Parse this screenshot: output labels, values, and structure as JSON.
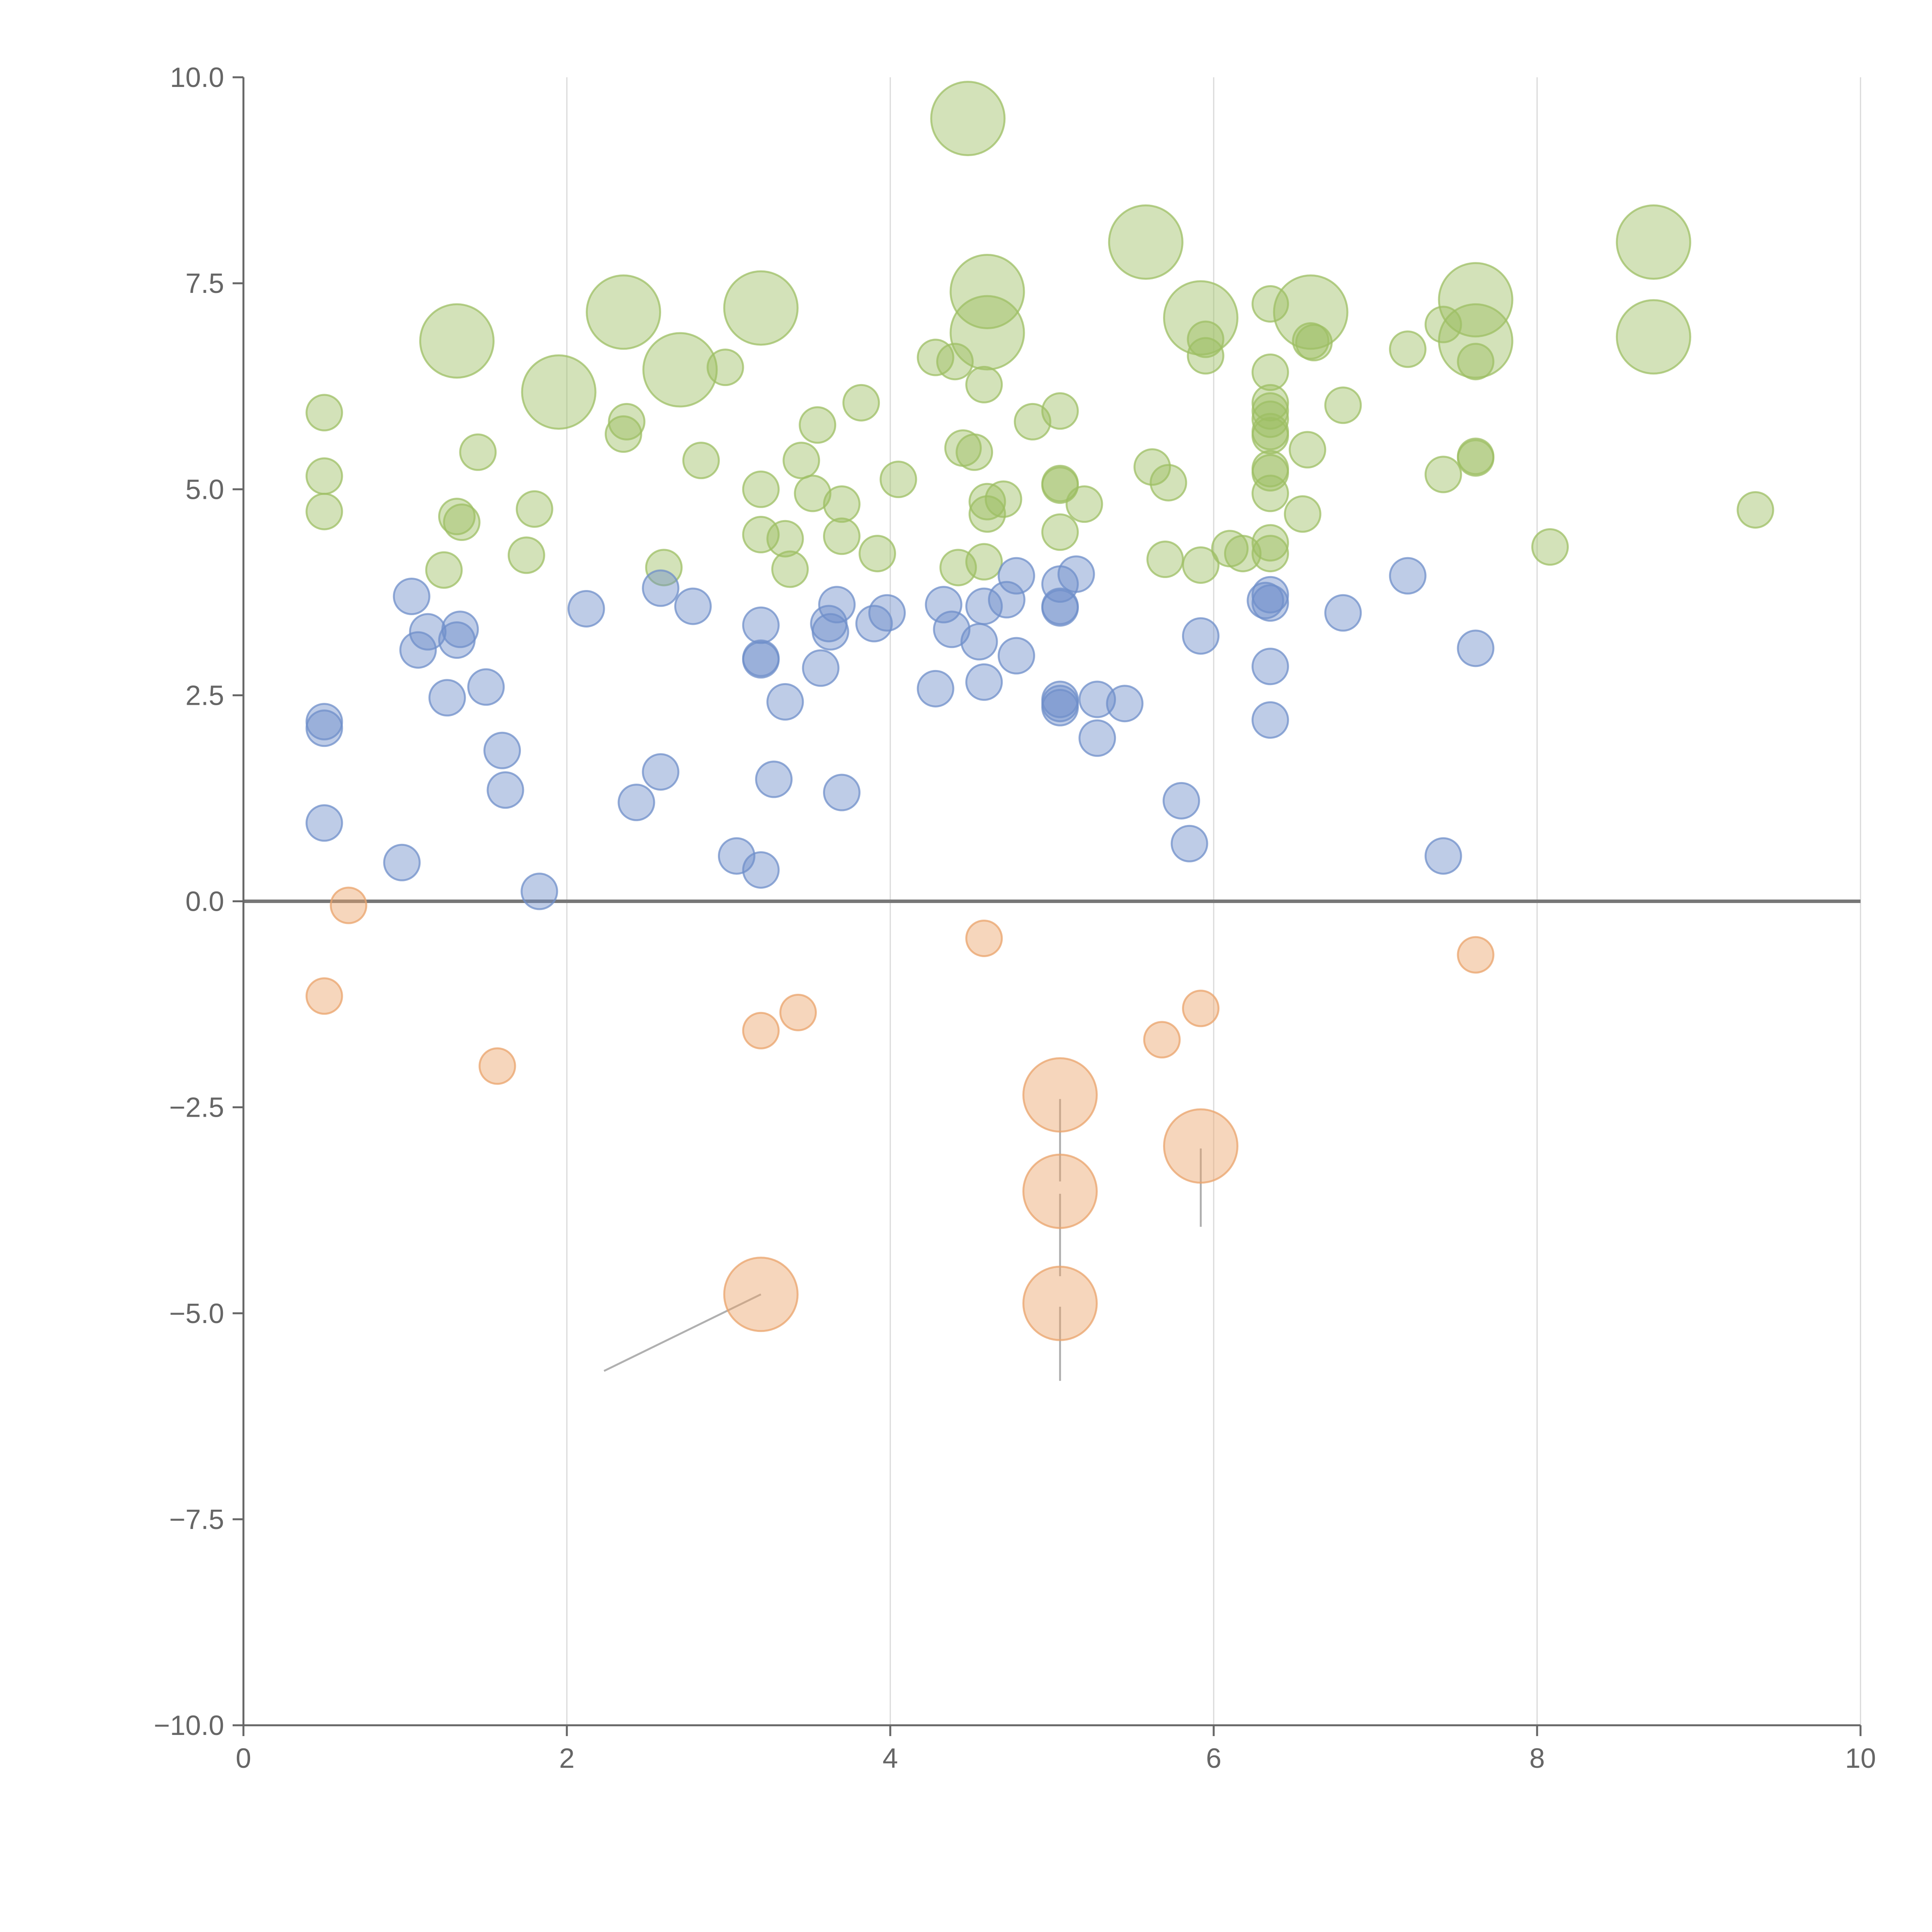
{
  "chart_data": {
    "type": "scatter",
    "title": "",
    "xlabel": "",
    "ylabel": "",
    "xlim": [
      0,
      10
    ],
    "ylim": [
      -10,
      10
    ],
    "xticks": [
      0,
      2,
      4,
      6,
      8,
      10
    ],
    "yticks": [
      -10,
      -7.5,
      -5,
      -2.5,
      0,
      2.5,
      5,
      7.5,
      10
    ],
    "xtick_labels": [
      "0",
      "2",
      "4",
      "6",
      "8",
      "10"
    ],
    "ytick_labels": [
      "−10.0",
      "−7.5",
      "−5.0",
      "−2.5",
      "0.0",
      "2.5",
      "5.0",
      "7.5",
      "10.0"
    ],
    "grid": "vertical",
    "reference_line_y": 0,
    "colors": {
      "green": "#9dbf64",
      "blue": "#6f8fca",
      "orange": "#eaa36b"
    },
    "series": [
      {
        "name": "green",
        "color": "#9dbf64",
        "points": [
          [
            4.48,
            9.5,
            "L"
          ],
          [
            5.58,
            8.0,
            "L"
          ],
          [
            8.72,
            8.0,
            "L"
          ],
          [
            2.35,
            7.15,
            "L"
          ],
          [
            3.2,
            7.2,
            "L"
          ],
          [
            4.6,
            7.4,
            "L"
          ],
          [
            6.6,
            7.15,
            "L"
          ],
          [
            7.62,
            7.3,
            "L"
          ],
          [
            1.32,
            6.8,
            "L"
          ],
          [
            4.6,
            6.9,
            "L"
          ],
          [
            5.92,
            7.08,
            "L"
          ],
          [
            7.62,
            6.8,
            "L"
          ],
          [
            8.72,
            6.85,
            "L"
          ],
          [
            1.95,
            6.18,
            "L"
          ],
          [
            2.7,
            6.45,
            "L"
          ],
          [
            0.5,
            5.93,
            "S"
          ],
          [
            0.5,
            5.16,
            "S"
          ],
          [
            0.5,
            4.73,
            "S"
          ],
          [
            1.24,
            4.02,
            "S"
          ],
          [
            1.32,
            4.67,
            "S"
          ],
          [
            1.35,
            4.6,
            "S"
          ],
          [
            1.45,
            5.45,
            "S"
          ],
          [
            1.75,
            4.2,
            "S"
          ],
          [
            1.8,
            4.76,
            "S"
          ],
          [
            2.35,
            5.67,
            "S"
          ],
          [
            2.37,
            5.82,
            "S"
          ],
          [
            2.6,
            4.05,
            "S"
          ],
          [
            2.83,
            5.35,
            "S"
          ],
          [
            2.98,
            6.48,
            "S"
          ],
          [
            3.2,
            5.0,
            "S"
          ],
          [
            3.2,
            4.45,
            "S"
          ],
          [
            3.35,
            4.4,
            "S"
          ],
          [
            3.38,
            4.03,
            "S"
          ],
          [
            3.45,
            5.35,
            "S"
          ],
          [
            3.52,
            4.95,
            "S"
          ],
          [
            3.55,
            5.78,
            "S"
          ],
          [
            3.7,
            4.43,
            "S"
          ],
          [
            3.7,
            4.82,
            "S"
          ],
          [
            3.82,
            6.05,
            "S"
          ],
          [
            3.92,
            4.22,
            "S"
          ],
          [
            4.05,
            5.12,
            "S"
          ],
          [
            4.28,
            6.6,
            "S"
          ],
          [
            4.4,
            6.55,
            "S"
          ],
          [
            4.42,
            4.05,
            "S"
          ],
          [
            4.45,
            5.5,
            "S"
          ],
          [
            4.52,
            5.45,
            "S"
          ],
          [
            4.58,
            6.27,
            "S"
          ],
          [
            4.58,
            4.12,
            "S"
          ],
          [
            4.6,
            4.7,
            "S"
          ],
          [
            4.6,
            4.85,
            "S"
          ],
          [
            4.7,
            4.88,
            "S"
          ],
          [
            4.88,
            5.82,
            "S"
          ],
          [
            5.05,
            5.95,
            "S"
          ],
          [
            5.05,
            5.07,
            "S"
          ],
          [
            5.05,
            5.05,
            "S"
          ],
          [
            5.05,
            4.48,
            "S"
          ],
          [
            5.2,
            4.82,
            "S"
          ],
          [
            5.62,
            5.27,
            "S"
          ],
          [
            5.7,
            4.15,
            "S"
          ],
          [
            5.72,
            5.08,
            "S"
          ],
          [
            5.92,
            4.08,
            "S"
          ],
          [
            5.95,
            6.82,
            "S"
          ],
          [
            5.95,
            6.62,
            "S"
          ],
          [
            6.1,
            4.28,
            "S"
          ],
          [
            6.18,
            4.22,
            "S"
          ],
          [
            6.35,
            7.25,
            "S"
          ],
          [
            6.35,
            6.42,
            "S"
          ],
          [
            6.35,
            6.05,
            "S"
          ],
          [
            6.35,
            5.95,
            "S"
          ],
          [
            6.35,
            5.85,
            "S"
          ],
          [
            6.35,
            5.65,
            "S"
          ],
          [
            6.35,
            5.25,
            "S"
          ],
          [
            6.35,
            4.95,
            "S"
          ],
          [
            6.35,
            4.35,
            "S"
          ],
          [
            6.35,
            4.22,
            "S"
          ],
          [
            6.35,
            5.7,
            "S"
          ],
          [
            6.35,
            5.2,
            "S"
          ],
          [
            6.58,
            5.48,
            "S"
          ],
          [
            6.55,
            4.7,
            "S"
          ],
          [
            6.6,
            6.8,
            "S"
          ],
          [
            6.62,
            6.78,
            "S"
          ],
          [
            6.8,
            6.02,
            "S"
          ],
          [
            7.2,
            6.7,
            "S"
          ],
          [
            7.42,
            7.0,
            "S"
          ],
          [
            7.42,
            5.18,
            "S"
          ],
          [
            7.62,
            6.55,
            "S"
          ],
          [
            7.62,
            5.4,
            "S"
          ],
          [
            7.62,
            5.38,
            "S"
          ],
          [
            8.08,
            4.3,
            "S"
          ],
          [
            9.35,
            4.75,
            "S"
          ]
        ]
      },
      {
        "name": "blue",
        "color": "#6f8fca",
        "points": [
          [
            0.5,
            2.18,
            "S"
          ],
          [
            0.5,
            2.1,
            "S"
          ],
          [
            0.5,
            0.95,
            "S"
          ],
          [
            0.98,
            0.47,
            "S"
          ],
          [
            1.04,
            3.7,
            "S"
          ],
          [
            1.08,
            3.05,
            "S"
          ],
          [
            1.14,
            3.27,
            "S"
          ],
          [
            1.26,
            2.47,
            "S"
          ],
          [
            1.32,
            3.17,
            "S"
          ],
          [
            1.34,
            3.3,
            "S"
          ],
          [
            1.5,
            2.6,
            "S"
          ],
          [
            1.6,
            1.83,
            "S"
          ],
          [
            1.62,
            1.35,
            "S"
          ],
          [
            1.83,
            0.12,
            "S"
          ],
          [
            2.12,
            3.55,
            "S"
          ],
          [
            2.43,
            1.2,
            "S"
          ],
          [
            2.58,
            3.8,
            "S"
          ],
          [
            2.58,
            1.57,
            "S"
          ],
          [
            2.78,
            3.58,
            "S"
          ],
          [
            3.05,
            0.55,
            "S"
          ],
          [
            3.2,
            3.35,
            "S"
          ],
          [
            3.2,
            2.95,
            "S"
          ],
          [
            3.2,
            2.93,
            "S"
          ],
          [
            3.2,
            0.38,
            "S"
          ],
          [
            3.28,
            1.48,
            "S"
          ],
          [
            3.35,
            2.42,
            "S"
          ],
          [
            3.57,
            2.83,
            "S"
          ],
          [
            3.62,
            3.37,
            "S"
          ],
          [
            3.63,
            3.27,
            "S"
          ],
          [
            3.67,
            3.6,
            "S"
          ],
          [
            3.7,
            1.32,
            "S"
          ],
          [
            3.9,
            3.37,
            "S"
          ],
          [
            3.98,
            3.5,
            "S"
          ],
          [
            4.28,
            2.58,
            "S"
          ],
          [
            4.33,
            3.6,
            "S"
          ],
          [
            4.38,
            3.3,
            "S"
          ],
          [
            4.55,
            3.15,
            "S"
          ],
          [
            4.58,
            3.58,
            "S"
          ],
          [
            4.58,
            2.66,
            "S"
          ],
          [
            4.72,
            3.66,
            "S"
          ],
          [
            4.78,
            3.95,
            "S"
          ],
          [
            4.78,
            2.98,
            "S"
          ],
          [
            5.05,
            3.85,
            "S"
          ],
          [
            5.05,
            3.58,
            "S"
          ],
          [
            5.05,
            3.56,
            "S"
          ],
          [
            5.05,
            2.45,
            "S"
          ],
          [
            5.05,
            2.35,
            "S"
          ],
          [
            5.05,
            2.4,
            "S"
          ],
          [
            5.15,
            3.97,
            "S"
          ],
          [
            5.28,
            2.45,
            "S"
          ],
          [
            5.28,
            1.98,
            "S"
          ],
          [
            5.45,
            2.4,
            "S"
          ],
          [
            5.8,
            1.22,
            "S"
          ],
          [
            5.85,
            0.7,
            "S"
          ],
          [
            5.92,
            3.22,
            "S"
          ],
          [
            6.32,
            3.65,
            "S"
          ],
          [
            6.35,
            3.72,
            "S"
          ],
          [
            6.35,
            3.62,
            "S"
          ],
          [
            6.35,
            2.85,
            "S"
          ],
          [
            6.35,
            2.2,
            "S"
          ],
          [
            6.8,
            3.5,
            "S"
          ],
          [
            7.2,
            3.95,
            "S"
          ],
          [
            7.42,
            0.55,
            "S"
          ],
          [
            7.62,
            3.07,
            "S"
          ]
        ]
      },
      {
        "name": "orange",
        "color": "#eaa36b",
        "points": [
          [
            0.65,
            -0.05,
            "S"
          ],
          [
            0.5,
            -1.15,
            "S"
          ],
          [
            1.57,
            -2.0,
            "S"
          ],
          [
            3.2,
            -1.57,
            "S"
          ],
          [
            3.43,
            -1.35,
            "S"
          ],
          [
            4.58,
            -0.45,
            "S"
          ],
          [
            5.68,
            -1.68,
            "S"
          ],
          [
            5.92,
            -1.3,
            "S"
          ],
          [
            7.62,
            -0.65,
            "S"
          ],
          [
            5.05,
            -2.35,
            "L"
          ],
          [
            5.92,
            -2.97,
            "L"
          ],
          [
            5.05,
            -3.52,
            "L"
          ],
          [
            5.05,
            -4.88,
            "L"
          ],
          [
            3.2,
            -4.77,
            "L"
          ]
        ]
      }
    ],
    "annotation_leaders": [
      [
        3.2,
        -4.77,
        2.23,
        -5.7
      ],
      [
        5.05,
        -2.4,
        5.05,
        -3.4
      ],
      [
        5.05,
        -3.55,
        5.05,
        -4.55
      ],
      [
        5.05,
        -4.92,
        5.05,
        -5.82
      ],
      [
        5.92,
        -3.0,
        5.92,
        -3.95
      ]
    ]
  }
}
